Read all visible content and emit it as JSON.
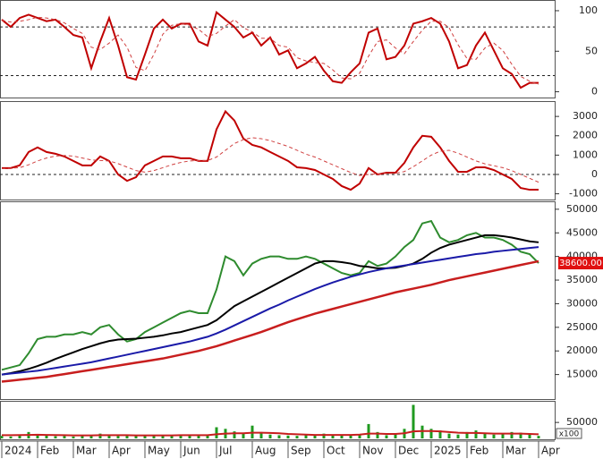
{
  "chart_data": [
    {
      "type": "line",
      "ylim": [
        -6,
        111
      ],
      "yticks": [
        0,
        50,
        100
      ],
      "ref_lines": [
        80,
        20
      ],
      "series": [
        {
          "color": "#c00000",
          "values": [
            89,
            80,
            91,
            95,
            91,
            87,
            89,
            80,
            70,
            67,
            29,
            62,
            91,
            57,
            18,
            15,
            46,
            78,
            89,
            78,
            84,
            84,
            62,
            57,
            98,
            89,
            80,
            67,
            73,
            57,
            67,
            46,
            51,
            29,
            35,
            43,
            26,
            13,
            11,
            24,
            35,
            73,
            78,
            40,
            43,
            57,
            84,
            87,
            91,
            84,
            62,
            29,
            33,
            57,
            73,
            51,
            29,
            22,
            5,
            11,
            11
          ]
        },
        {
          "color": "#d04040",
          "dash": true,
          "values": [
            88,
            86,
            87,
            89,
            92,
            91,
            89,
            85,
            78,
            72,
            55,
            52,
            60,
            70,
            55,
            30,
            26,
            46,
            71,
            82,
            84,
            82,
            77,
            68,
            72,
            81,
            89,
            79,
            74,
            66,
            66,
            57,
            55,
            42,
            38,
            36,
            35,
            27,
            17,
            16,
            23,
            44,
            62,
            64,
            54,
            47,
            62,
            76,
            87,
            87,
            79,
            58,
            41,
            40,
            54,
            60,
            51,
            34,
            19,
            13,
            9
          ]
        }
      ]
    },
    {
      "type": "line",
      "ylim": [
        -1250,
        3700
      ],
      "yticks": [
        -1000,
        0,
        1000,
        2000,
        3000
      ],
      "ref_lines": [
        0
      ],
      "series": [
        {
          "color": "#c00000",
          "values": [
            330,
            330,
            470,
            1160,
            1400,
            1160,
            1070,
            930,
            700,
            470,
            470,
            930,
            700,
            0,
            -330,
            -140,
            470,
            700,
            930,
            930,
            840,
            840,
            700,
            700,
            2330,
            3260,
            2790,
            1860,
            1530,
            1400,
            1160,
            930,
            700,
            370,
            330,
            230,
            0,
            -230,
            -600,
            -790,
            -470,
            330,
            0,
            90,
            90,
            600,
            1400,
            2000,
            1950,
            1400,
            700,
            140,
            140,
            370,
            370,
            230,
            0,
            -230,
            -700,
            -790,
            -790
          ]
        },
        {
          "color": "#d04040",
          "dash": true,
          "values": [
            300,
            320,
            350,
            500,
            700,
            850,
            950,
            980,
            950,
            850,
            750,
            720,
            700,
            560,
            380,
            200,
            120,
            200,
            350,
            500,
            620,
            700,
            720,
            720,
            900,
            1250,
            1600,
            1800,
            1900,
            1850,
            1750,
            1600,
            1450,
            1250,
            1050,
            900,
            700,
            500,
            300,
            100,
            -50,
            0,
            30,
            50,
            60,
            150,
            400,
            700,
            1000,
            1200,
            1250,
            1100,
            900,
            700,
            550,
            450,
            350,
            200,
            0,
            -200,
            -400
          ]
        }
      ]
    },
    {
      "type": "line",
      "ylim": [
        10000,
        51300
      ],
      "yticks": [
        15000,
        20000,
        25000,
        30000,
        35000,
        40000,
        45000,
        50000
      ],
      "last_label": {
        "value": 38600,
        "label": "38600.00"
      },
      "series": [
        {
          "color": "#2e8b2e",
          "values": [
            16000,
            16500,
            17000,
            19500,
            22500,
            23000,
            23000,
            23500,
            23500,
            24000,
            23500,
            25000,
            25500,
            23500,
            22000,
            22500,
            24000,
            25000,
            26000,
            27000,
            28000,
            28500,
            28000,
            28000,
            33000,
            40000,
            39000,
            36000,
            38500,
            39500,
            40000,
            40000,
            39500,
            39500,
            40000,
            39500,
            38500,
            37500,
            36500,
            36000,
            36500,
            39000,
            38000,
            38500,
            40000,
            42000,
            43500,
            47000,
            47500,
            44000,
            43000,
            43500,
            44500,
            45000,
            44000,
            44000,
            43500,
            42500,
            41000,
            40500,
            38600
          ]
        },
        {
          "color": "#000000",
          "values": [
            15000,
            15300,
            15700,
            16200,
            16800,
            17500,
            18300,
            19000,
            19700,
            20400,
            21000,
            21600,
            22100,
            22400,
            22500,
            22600,
            22800,
            23000,
            23300,
            23700,
            24000,
            24500,
            25000,
            25500,
            26500,
            28000,
            29500,
            30500,
            31500,
            32500,
            33500,
            34500,
            35500,
            36500,
            37500,
            38500,
            39000,
            39000,
            38800,
            38500,
            38000,
            37800,
            37500,
            37500,
            37600,
            38000,
            38500,
            39500,
            40800,
            41800,
            42500,
            43000,
            43500,
            44000,
            44500,
            44500,
            44300,
            44000,
            43600,
            43200,
            43000
          ]
        },
        {
          "color": "#1a1aa8",
          "values": [
            15000,
            15200,
            15400,
            15600,
            15800,
            16100,
            16400,
            16700,
            17000,
            17300,
            17600,
            18000,
            18400,
            18800,
            19200,
            19600,
            20000,
            20400,
            20800,
            21200,
            21600,
            22000,
            22500,
            23000,
            23700,
            24500,
            25400,
            26300,
            27200,
            28100,
            29000,
            29800,
            30700,
            31500,
            32300,
            33100,
            33800,
            34500,
            35100,
            35700,
            36200,
            36700,
            37100,
            37500,
            37800,
            38100,
            38400,
            38700,
            39000,
            39300,
            39600,
            39900,
            40200,
            40500,
            40700,
            41000,
            41200,
            41400,
            41600,
            41800,
            42000
          ]
        },
        {
          "color": "#c81e1e",
          "width": 2.5,
          "values": [
            13500,
            13700,
            13900,
            14100,
            14300,
            14500,
            14800,
            15100,
            15400,
            15700,
            16000,
            16300,
            16600,
            16900,
            17200,
            17500,
            17800,
            18100,
            18400,
            18800,
            19200,
            19600,
            20000,
            20500,
            21000,
            21600,
            22200,
            22800,
            23400,
            24000,
            24700,
            25400,
            26100,
            26700,
            27300,
            27900,
            28400,
            28900,
            29400,
            29900,
            30400,
            30900,
            31400,
            31900,
            32400,
            32800,
            33200,
            33600,
            34000,
            34500,
            35000,
            35400,
            35800,
            36200,
            36600,
            37000,
            37400,
            37800,
            38200,
            38600,
            39000
          ]
        }
      ]
    },
    {
      "type": "bar",
      "ylim": [
        0,
        112000
      ],
      "yticks": [
        50000
      ],
      "unit_label": "x100",
      "categories": [
        "2024",
        null,
        null,
        null,
        "Feb",
        null,
        null,
        null,
        "Mar",
        null,
        null,
        null,
        "Apr",
        null,
        null,
        null,
        "May",
        null,
        null,
        null,
        "Jun",
        null,
        null,
        null,
        "Jul",
        null,
        null,
        null,
        "Aug",
        null,
        null,
        null,
        "Sep",
        null,
        null,
        null,
        "Oct",
        null,
        null,
        null,
        "Nov",
        null,
        null,
        null,
        "Dec",
        null,
        null,
        null,
        "2025",
        null,
        null,
        null,
        "Feb",
        null,
        null,
        null,
        "Mar",
        null,
        null,
        null,
        "Apr"
      ],
      "series": [
        {
          "color": "#1f9a1f",
          "values": [
            8000,
            6000,
            12000,
            20000,
            14000,
            9000,
            7000,
            8000,
            6000,
            9000,
            7000,
            15000,
            10000,
            8000,
            12000,
            7000,
            9000,
            8000,
            10000,
            9000,
            11000,
            12000,
            9000,
            10000,
            35000,
            30000,
            22000,
            15000,
            40000,
            20000,
            12000,
            10000,
            9000,
            8000,
            11000,
            9000,
            15000,
            12000,
            10000,
            9000,
            14000,
            45000,
            20000,
            10000,
            12000,
            30000,
            105000,
            40000,
            30000,
            25000,
            15000,
            12000,
            20000,
            25000,
            15000,
            12000,
            14000,
            20000,
            18000,
            12000,
            8000
          ]
        },
        {
          "color": "#c81e1e",
          "type": "line",
          "values": [
            10000,
            10000,
            10500,
            11000,
            11500,
            11000,
            10500,
            10000,
            9500,
            9500,
            9500,
            10000,
            10000,
            10000,
            10000,
            9500,
            9500,
            9500,
            9500,
            9500,
            10000,
            10000,
            10000,
            10000,
            13000,
            15000,
            16000,
            16000,
            18000,
            18000,
            17000,
            16000,
            14000,
            13000,
            12000,
            11000,
            11000,
            11000,
            11000,
            11000,
            12000,
            15000,
            15000,
            14000,
            14000,
            16000,
            22000,
            23000,
            23000,
            22000,
            20000,
            18000,
            17000,
            17000,
            16000,
            15000,
            15000,
            15000,
            15000,
            14000,
            13000
          ]
        }
      ]
    }
  ]
}
